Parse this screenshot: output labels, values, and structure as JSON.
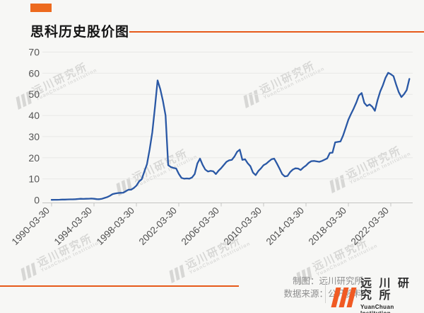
{
  "header": {
    "title": "思科历史股价图"
  },
  "watermark": {
    "cn": "远川研究所",
    "en": "YuanChuan Institution"
  },
  "footer": {
    "credit_line1": "制图：远川研究所",
    "credit_line2": "数据来源：公开资料",
    "logo_cn": "远 川 研 究 所",
    "logo_en": "YuanChuan Institution"
  },
  "colors": {
    "accent_orange": "#e65a1a",
    "logo_orange": "#f05a23",
    "line_blue": "#2a58a5",
    "background": "#f7f7f5"
  },
  "chart_data": {
    "type": "line",
    "title": "思科历史股价图",
    "x_start": "1990-03-30",
    "x_interval": "quarterly",
    "x_tick_labels": [
      "1990-03-30",
      "1994-03-30",
      "1998-03-30",
      "2002-03-30",
      "2006-03-30",
      "2010-03-30",
      "2014-03-30",
      "2018-03-30",
      "2022-03-30"
    ],
    "y_ticks": [
      0,
      10,
      20,
      30,
      40,
      50,
      60,
      70
    ],
    "ylim": [
      0,
      70
    ],
    "grid": true,
    "legend": "none",
    "line_color": "#2a58a5",
    "values": [
      0.1,
      0.12,
      0.15,
      0.18,
      0.22,
      0.25,
      0.3,
      0.32,
      0.35,
      0.4,
      0.5,
      0.6,
      0.55,
      0.6,
      0.65,
      0.7,
      0.6,
      0.45,
      0.4,
      0.6,
      1.0,
      1.4,
      2.0,
      2.8,
      3.1,
      3.3,
      3.4,
      3.5,
      4.2,
      4.9,
      4.9,
      5.7,
      6.8,
      8.8,
      9.8,
      13.5,
      17.0,
      24.0,
      32.0,
      44.0,
      56.6,
      52.5,
      47.0,
      40.0,
      16.5,
      15.6,
      15.2,
      14.9,
      12.4,
      10.5,
      10.1,
      10.2,
      10.1,
      10.7,
      12.3,
      17.3,
      19.6,
      16.6,
      14.4,
      13.5,
      13.8,
      13.6,
      12.3,
      13.9,
      15.1,
      16.6,
      18.1,
      18.8,
      19.0,
      20.6,
      22.8,
      23.8,
      19.0,
      19.3,
      17.4,
      16.0,
      13.0,
      11.8,
      13.7,
      15.0,
      16.5,
      17.2,
      18.3,
      19.3,
      19.6,
      17.3,
      14.9,
      12.3,
      11.2,
      11.4,
      13.2,
      14.4,
      15.0,
      14.9,
      14.2,
      15.4,
      16.3,
      17.6,
      18.4,
      18.5,
      18.3,
      18.1,
      18.5,
      19.1,
      19.7,
      22.3,
      22.4,
      27.3,
      27.5,
      27.7,
      30.5,
      34.3,
      38.0,
      40.8,
      43.3,
      46.2,
      49.5,
      50.6,
      46.0,
      44.5,
      45.2,
      44.1,
      42.2,
      47.3,
      51.3,
      54.3,
      57.8,
      60.2,
      59.5,
      58.6,
      54.7,
      51.0,
      48.7,
      50.1,
      52.0,
      57.3
    ]
  }
}
